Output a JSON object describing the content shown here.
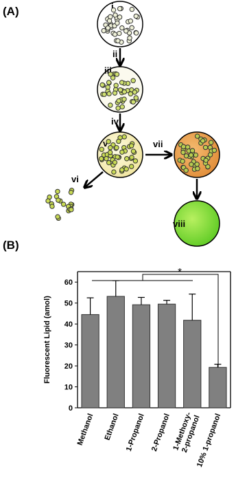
{
  "panel_a": {
    "label": "(A)",
    "steps": [
      "i",
      "ii",
      "iii",
      "iv",
      "v",
      "vi",
      "vii",
      "viii"
    ]
  },
  "panel_b": {
    "label": "(B)",
    "significance": "*"
  },
  "chart_data": {
    "type": "bar",
    "y_label": "Fluorescent Lipid (amol)",
    "categories": [
      "Methanol",
      "Ethanol",
      "1-Propanol",
      "2-Propanol",
      "1-Methoxy-\n2-propanol",
      "10% 1-propanol"
    ],
    "values": [
      44.5,
      53.2,
      49.2,
      49.5,
      41.8,
      19.3
    ],
    "errors": [
      8,
      7.5,
      3.5,
      1.8,
      12.5,
      1.5
    ],
    "color": "#808080",
    "ylim": [
      0,
      65
    ],
    "yticks": [
      0,
      10,
      20,
      30,
      40,
      50,
      60
    ]
  }
}
